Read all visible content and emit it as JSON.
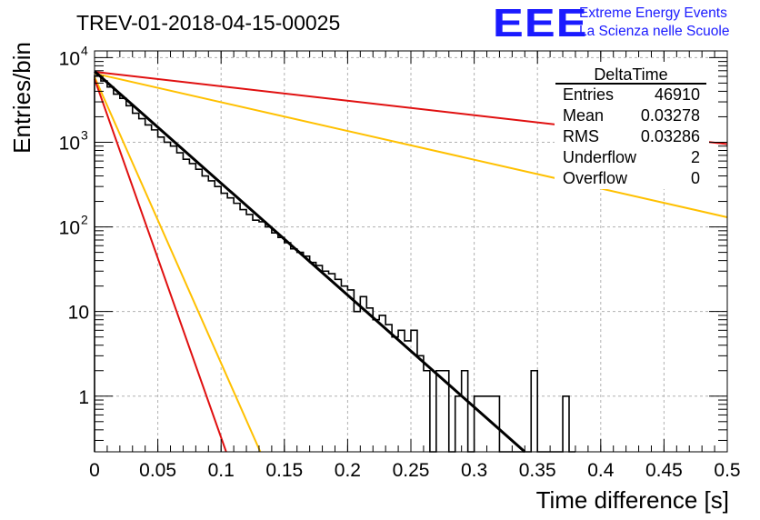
{
  "chart_data": {
    "type": "histogram",
    "title": "TREV-01-2018-04-15-00025",
    "xlabel": "Time difference [s]",
    "ylabel": "Entries/bin",
    "xlim": [
      0,
      0.5
    ],
    "ylim": [
      0.22,
      12000
    ],
    "y_scale": "log",
    "grid": true,
    "x_ticks": [
      "0",
      "0.05",
      "0.1",
      "0.15",
      "0.2",
      "0.25",
      "0.3",
      "0.35",
      "0.4",
      "0.45",
      "0.5"
    ],
    "y_ticks": [
      {
        "value": 1,
        "base": "1",
        "exp": ""
      },
      {
        "value": 10,
        "base": "10",
        "exp": ""
      },
      {
        "value": 100,
        "base": "10",
        "exp": "2"
      },
      {
        "value": 1000,
        "base": "10",
        "exp": "3"
      },
      {
        "value": 10000,
        "base": "10",
        "exp": "4"
      }
    ],
    "histogram": {
      "bin_width": 0.005,
      "color": "#000000",
      "bins": [
        {
          "x": 0.0,
          "y": 6100
        },
        {
          "x": 0.005,
          "y": 5300
        },
        {
          "x": 0.01,
          "y": 4500
        },
        {
          "x": 0.015,
          "y": 3700
        },
        {
          "x": 0.02,
          "y": 3300
        },
        {
          "x": 0.025,
          "y": 2700
        },
        {
          "x": 0.03,
          "y": 2200
        },
        {
          "x": 0.035,
          "y": 1900
        },
        {
          "x": 0.04,
          "y": 1600
        },
        {
          "x": 0.045,
          "y": 1400
        },
        {
          "x": 0.05,
          "y": 1150
        },
        {
          "x": 0.055,
          "y": 1000
        },
        {
          "x": 0.06,
          "y": 900
        },
        {
          "x": 0.065,
          "y": 750
        },
        {
          "x": 0.07,
          "y": 630
        },
        {
          "x": 0.075,
          "y": 560
        },
        {
          "x": 0.08,
          "y": 480
        },
        {
          "x": 0.085,
          "y": 400
        },
        {
          "x": 0.09,
          "y": 350
        },
        {
          "x": 0.095,
          "y": 300
        },
        {
          "x": 0.1,
          "y": 250
        },
        {
          "x": 0.105,
          "y": 220
        },
        {
          "x": 0.11,
          "y": 190
        },
        {
          "x": 0.115,
          "y": 160
        },
        {
          "x": 0.12,
          "y": 140
        },
        {
          "x": 0.125,
          "y": 120
        },
        {
          "x": 0.13,
          "y": 115
        },
        {
          "x": 0.135,
          "y": 100
        },
        {
          "x": 0.14,
          "y": 85
        },
        {
          "x": 0.145,
          "y": 75
        },
        {
          "x": 0.15,
          "y": 65
        },
        {
          "x": 0.155,
          "y": 55
        },
        {
          "x": 0.16,
          "y": 50
        },
        {
          "x": 0.165,
          "y": 45
        },
        {
          "x": 0.17,
          "y": 38
        },
        {
          "x": 0.175,
          "y": 35
        },
        {
          "x": 0.18,
          "y": 30
        },
        {
          "x": 0.185,
          "y": 28
        },
        {
          "x": 0.19,
          "y": 24
        },
        {
          "x": 0.195,
          "y": 20
        },
        {
          "x": 0.2,
          "y": 18
        },
        {
          "x": 0.205,
          "y": 10
        },
        {
          "x": 0.21,
          "y": 15
        },
        {
          "x": 0.215,
          "y": 11
        },
        {
          "x": 0.22,
          "y": 8
        },
        {
          "x": 0.225,
          "y": 9
        },
        {
          "x": 0.23,
          "y": 7
        },
        {
          "x": 0.235,
          "y": 5
        },
        {
          "x": 0.24,
          "y": 6
        },
        {
          "x": 0.245,
          "y": 4.5
        },
        {
          "x": 0.25,
          "y": 6
        },
        {
          "x": 0.255,
          "y": 3
        },
        {
          "x": 0.26,
          "y": 2
        },
        {
          "x": 0.265,
          "y": 0.22
        },
        {
          "x": 0.27,
          "y": 2
        },
        {
          "x": 0.275,
          "y": 2
        },
        {
          "x": 0.28,
          "y": 0.22
        },
        {
          "x": 0.285,
          "y": 1
        },
        {
          "x": 0.29,
          "y": 2
        },
        {
          "x": 0.295,
          "y": 0.22
        },
        {
          "x": 0.3,
          "y": 1
        },
        {
          "x": 0.305,
          "y": 1
        },
        {
          "x": 0.31,
          "y": 1
        },
        {
          "x": 0.315,
          "y": 1
        },
        {
          "x": 0.32,
          "y": 0.22
        },
        {
          "x": 0.325,
          "y": 0.22
        },
        {
          "x": 0.33,
          "y": 0.22
        },
        {
          "x": 0.335,
          "y": 0.22
        },
        {
          "x": 0.34,
          "y": 0.22
        },
        {
          "x": 0.345,
          "y": 2
        },
        {
          "x": 0.35,
          "y": 0.22
        },
        {
          "x": 0.355,
          "y": 0.22
        },
        {
          "x": 0.36,
          "y": 0.22
        },
        {
          "x": 0.365,
          "y": 0.22
        },
        {
          "x": 0.37,
          "y": 1
        },
        {
          "x": 0.375,
          "y": 0.22
        }
      ]
    },
    "series": [
      {
        "color": "#e01010",
        "x": [
          0,
          0.5
        ],
        "y": [
          6800,
          950
        ]
      },
      {
        "color": "#ffc000",
        "x": [
          0,
          0.5
        ],
        "y": [
          6500,
          130
        ]
      },
      {
        "color": "#000000",
        "x": [
          0,
          0.34
        ],
        "y": [
          6900,
          0.22
        ]
      },
      {
        "color": "#ffc000",
        "x": [
          0,
          0.131
        ],
        "y": [
          5900,
          0.22
        ]
      },
      {
        "color": "#e01010",
        "x": [
          0,
          0.104
        ],
        "y": [
          5600,
          0.22
        ]
      }
    ],
    "stats_box": {
      "title": "DeltaTime",
      "rows": [
        {
          "label": "Entries",
          "value": "46910"
        },
        {
          "label": "Mean",
          "value": "0.03278"
        },
        {
          "label": "RMS",
          "value": "0.03286"
        },
        {
          "label": "Underflow",
          "value": "2"
        },
        {
          "label": "Overflow",
          "value": "0"
        }
      ]
    },
    "logo": {
      "mark": "EEE",
      "line1": "Extreme Energy Events",
      "line2": "La Scienza nelle Scuole",
      "color": "#1a1aff"
    }
  }
}
